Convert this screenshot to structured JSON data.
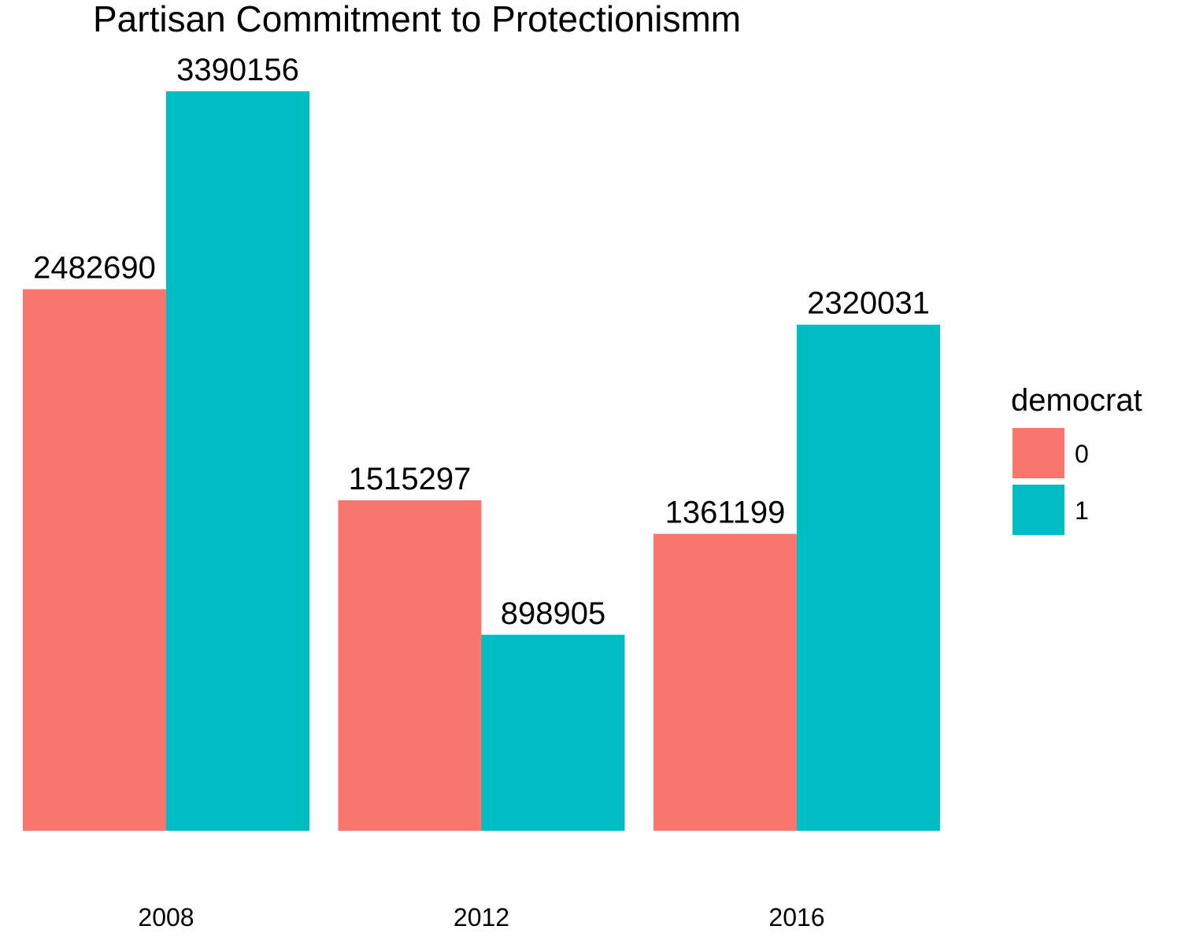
{
  "chart_data": {
    "type": "bar",
    "title": "Partisan Commitment to Protectionismm",
    "xlabel": "",
    "ylabel": "",
    "categories": [
      "2008",
      "2012",
      "2016"
    ],
    "series": [
      {
        "name": "0",
        "values": [
          2482690,
          1515297,
          1361199
        ],
        "color": "#F8766D"
      },
      {
        "name": "1",
        "values": [
          3390156,
          898905,
          2320031
        ],
        "color": "#00BFC4"
      }
    ],
    "ylim": [
      0,
      3390156
    ],
    "grid": false,
    "legend": {
      "title": "democrat",
      "placement": "right"
    },
    "data_labels": true
  }
}
